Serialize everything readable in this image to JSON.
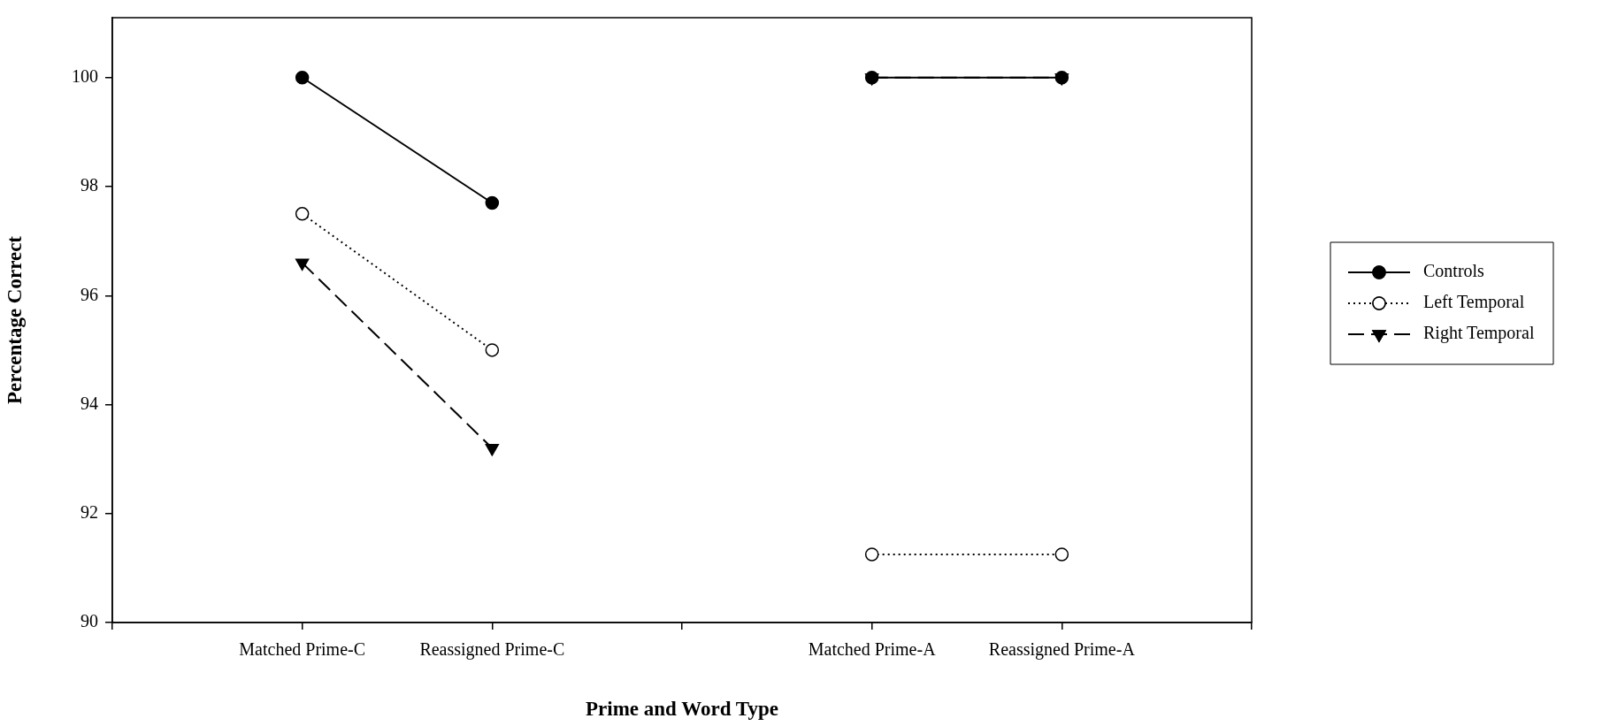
{
  "chart_data": {
    "type": "line",
    "xlabel": "Prime and Word Type",
    "ylabel": "Percentage Correct",
    "categories": [
      "Matched Prime-C",
      "Reassigned Prime-C",
      null,
      "Matched Prime-A",
      "Reassigned Prime-A"
    ],
    "series": [
      {
        "name": "Controls",
        "color": "#000000",
        "marker": "circle",
        "line_style": "solid",
        "values": [
          100,
          97.7,
          null,
          100,
          100
        ]
      },
      {
        "name": "Left Temporal",
        "color": "#000000",
        "marker": "circle-open",
        "line_style": "dotted",
        "values": [
          97.5,
          95.0,
          null,
          91.25,
          91.25
        ]
      },
      {
        "name": "Right Temporal",
        "color": "#000000",
        "marker": "triangle",
        "line_style": "dashed",
        "values": [
          96.6,
          93.2,
          null,
          100,
          100
        ]
      }
    ],
    "ylim": [
      90,
      101.1
    ],
    "yticks": [
      90,
      92,
      94,
      96,
      98,
      100
    ],
    "grid": false,
    "legend": "right"
  }
}
